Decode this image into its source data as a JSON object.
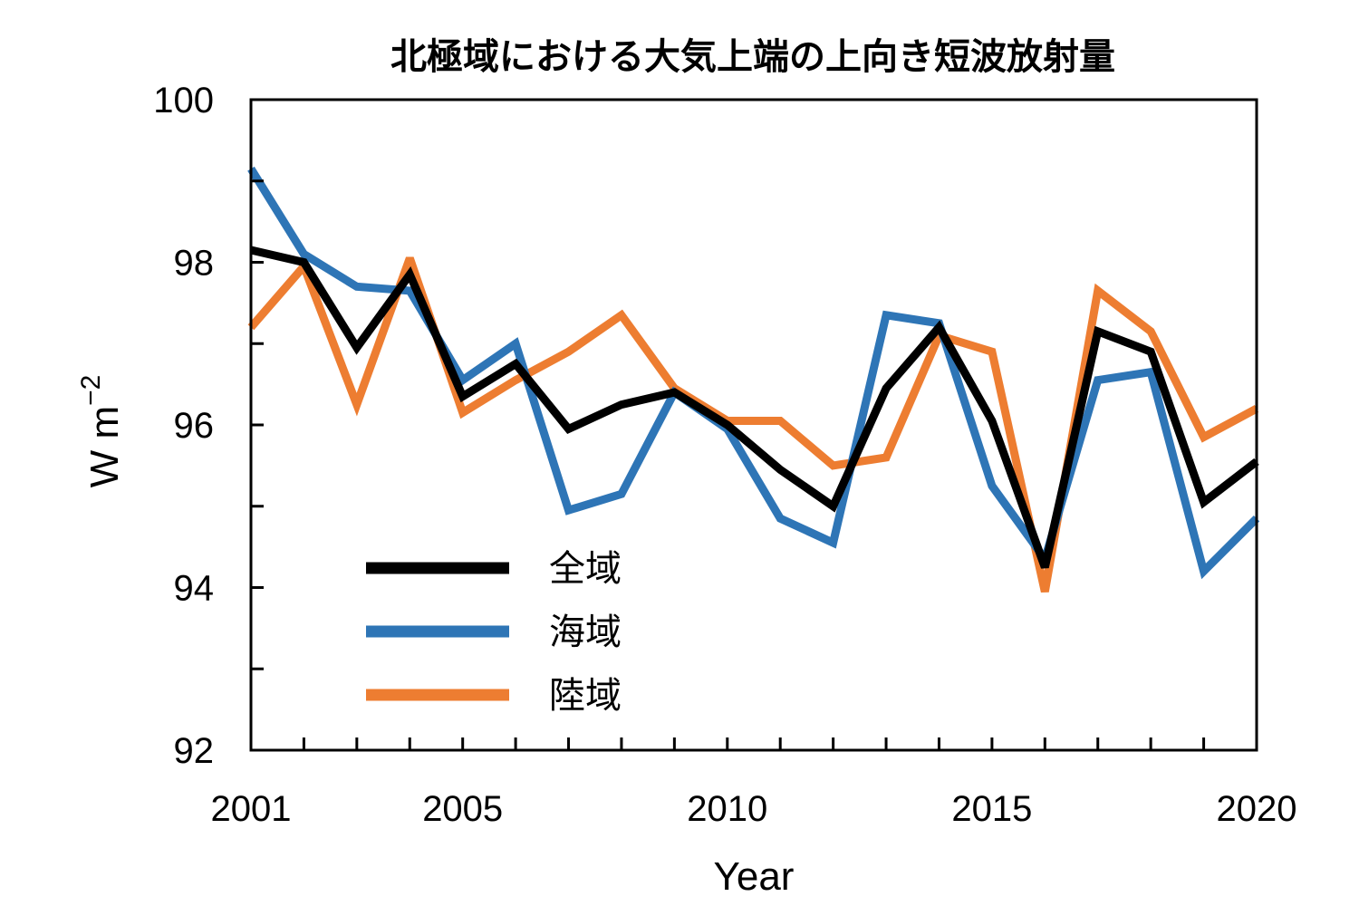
{
  "chart_data": {
    "type": "line",
    "title": "北極域における大気上端の上向き短波放射量",
    "xlabel": "Year",
    "ylabel": "W m",
    "ylabel_superscript": "−2",
    "xlim": [
      2001,
      2020
    ],
    "ylim": [
      92,
      100
    ],
    "x_tick_labels": [
      "2001",
      "2005",
      "2010",
      "2015",
      "2020"
    ],
    "y_tick_labels": [
      "92",
      "94",
      "96",
      "98",
      "100"
    ],
    "x": [
      2001,
      2002,
      2003,
      2004,
      2005,
      2006,
      2007,
      2008,
      2009,
      2010,
      2011,
      2012,
      2013,
      2014,
      2015,
      2016,
      2017,
      2018,
      2019,
      2020
    ],
    "legend_position": "lower-left",
    "grid": false,
    "series": [
      {
        "name": "全域",
        "color": "#000000",
        "values": [
          98.15,
          98.0,
          96.95,
          97.85,
          96.35,
          96.75,
          95.95,
          96.25,
          96.4,
          96.0,
          95.45,
          95.0,
          96.45,
          97.2,
          96.05,
          94.25,
          97.15,
          96.9,
          95.05,
          95.55
        ]
      },
      {
        "name": "海域",
        "color": "#2e75b6",
        "values": [
          99.15,
          98.1,
          97.7,
          97.65,
          96.55,
          97.0,
          94.95,
          95.15,
          96.4,
          95.95,
          94.85,
          94.55,
          97.35,
          97.25,
          95.25,
          94.35,
          96.55,
          96.65,
          94.2,
          94.85
        ]
      },
      {
        "name": "陸域",
        "color": "#ed7d31",
        "values": [
          97.2,
          97.95,
          96.25,
          98.05,
          96.15,
          96.55,
          96.9,
          97.35,
          96.45,
          96.05,
          96.05,
          95.5,
          95.6,
          97.1,
          96.9,
          93.95,
          97.65,
          97.15,
          95.85,
          96.2
        ]
      }
    ]
  }
}
